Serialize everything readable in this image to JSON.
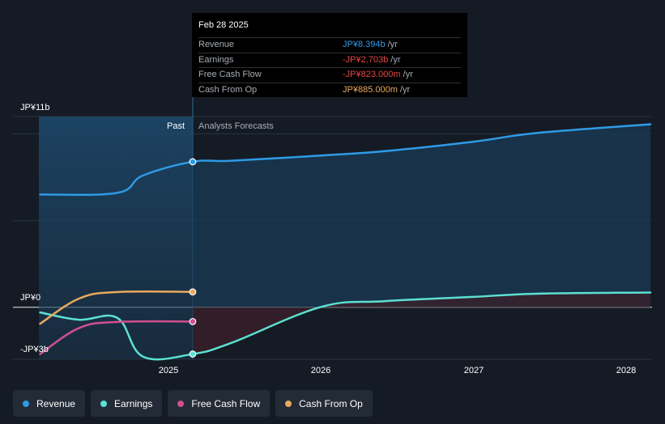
{
  "tooltip": {
    "date": "Feb 28 2025",
    "rows": [
      {
        "label": "Revenue",
        "value": "JP¥8.394b",
        "unit": "/yr",
        "color": "#2e9be6"
      },
      {
        "label": "Earnings",
        "value": "-JP¥2.703b",
        "unit": "/yr",
        "color": "#e64646"
      },
      {
        "label": "Free Cash Flow",
        "value": "-JP¥823.000m",
        "unit": "/yr",
        "color": "#e64646"
      },
      {
        "label": "Cash From Op",
        "value": "JP¥885.000m",
        "unit": "/yr",
        "color": "#e8a95e"
      }
    ]
  },
  "regions": {
    "past": "Past",
    "forecast": "Analysts Forecasts"
  },
  "axis": {
    "top_label": "JP¥11b",
    "zero_label": "JP¥0",
    "bottom_label": "-JP¥3b"
  },
  "chart_data": {
    "type": "line",
    "x_ticks": [
      "2025",
      "2026",
      "2027",
      "2028"
    ],
    "ylim": [
      -3,
      11
    ],
    "y_unit": "JP¥b",
    "divider_x": "2025-02-28",
    "series": [
      {
        "name": "Revenue",
        "color": "#2e9be6",
        "points": [
          [
            "2024-02-29",
            6.5
          ],
          [
            "2024-09-01",
            6.6
          ],
          [
            "2024-11-01",
            7.6
          ],
          [
            "2025-02-28",
            8.39
          ],
          [
            "2025-06-01",
            8.45
          ],
          [
            "2026-01-01",
            8.75
          ],
          [
            "2026-06-01",
            9.0
          ],
          [
            "2027-01-01",
            9.55
          ],
          [
            "2027-06-01",
            10.05
          ],
          [
            "2028-02-28",
            10.55
          ]
        ]
      },
      {
        "name": "Earnings",
        "color": "#5ce0d2",
        "points": [
          [
            "2024-02-29",
            -0.3
          ],
          [
            "2024-06-01",
            -0.72
          ],
          [
            "2024-09-01",
            -0.62
          ],
          [
            "2024-11-01",
            -2.85
          ],
          [
            "2025-02-28",
            -2.7
          ],
          [
            "2025-06-01",
            -2.05
          ],
          [
            "2026-01-01",
            0.02
          ],
          [
            "2026-06-01",
            0.35
          ],
          [
            "2027-01-01",
            0.6
          ],
          [
            "2027-06-01",
            0.78
          ],
          [
            "2028-02-28",
            0.85
          ]
        ]
      },
      {
        "name": "Free Cash Flow",
        "color": "#d0508f",
        "points": [
          [
            "2024-02-29",
            -2.7
          ],
          [
            "2024-06-01",
            -1.2
          ],
          [
            "2024-09-01",
            -0.85
          ],
          [
            "2025-02-28",
            -0.823
          ]
        ]
      },
      {
        "name": "Cash From Op",
        "color": "#e8a95e",
        "points": [
          [
            "2024-02-29",
            -0.95
          ],
          [
            "2024-06-01",
            0.5
          ],
          [
            "2024-09-01",
            0.88
          ],
          [
            "2025-02-28",
            0.885
          ]
        ]
      }
    ]
  },
  "legend": [
    {
      "label": "Revenue",
      "color": "#2e9be6"
    },
    {
      "label": "Earnings",
      "color": "#5ce0d2"
    },
    {
      "label": "Free Cash Flow",
      "color": "#d0508f"
    },
    {
      "label": "Cash From Op",
      "color": "#e8a95e"
    }
  ]
}
